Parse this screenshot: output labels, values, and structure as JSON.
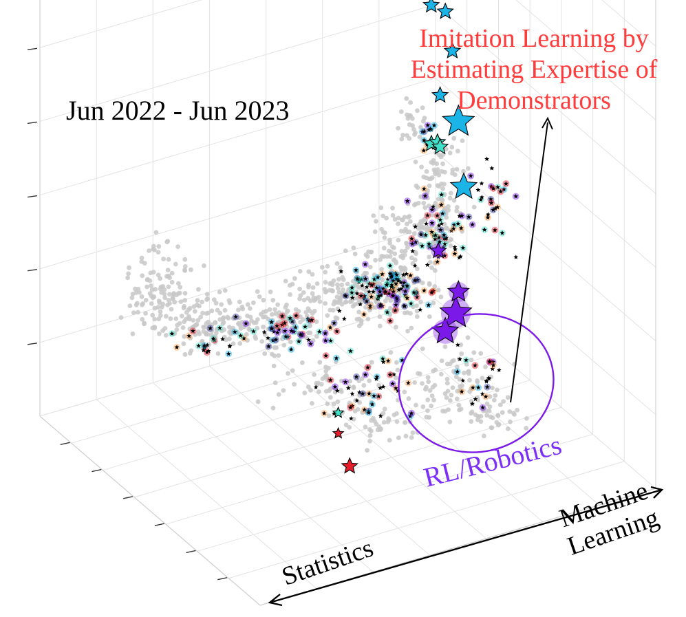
{
  "chart_data": {
    "type": "scatter",
    "title": "Jun 2022 - Jun 2023",
    "projection": "3d",
    "grid": true,
    "legend": "none",
    "axes": [
      {
        "name": "x",
        "label": "Statistics",
        "range": [
          0,
          1
        ]
      },
      {
        "name": "y",
        "label": "Machine Learning",
        "range": [
          0,
          1
        ]
      },
      {
        "name": "z",
        "label": "",
        "range": [
          0,
          1
        ]
      }
    ],
    "annotations": [
      {
        "text": "Imitation Learning by Estimating Expertise of Demonstrators",
        "color": "#ff3b3b",
        "points_to": [
          0.84,
          0.9,
          0.88
        ]
      },
      {
        "text": "RL/Robotics",
        "color": "#7b2ff7",
        "encloses": "purple cluster"
      }
    ],
    "colors": {
      "background_points": "#c8c8c8",
      "highlight_star": "#000000",
      "cyan": "#1ab4e6",
      "turquoise": "#40e0c8",
      "purple": "#7b19e8",
      "red": "#e61c2a",
      "orange": "#ffa552",
      "navy": "#3a3fa0",
      "annotation_red": "#ff3b3b"
    },
    "series": [
      {
        "name": "",
        "marker": "star",
        "color": "#1ab4e6",
        "points": [
          [
            0.64,
            0.8,
            0.82,
            5
          ],
          [
            0.7,
            0.86,
            0.8,
            5
          ],
          [
            0.66,
            0.8,
            0.74,
            2
          ],
          [
            0.74,
            0.88,
            0.68,
            2
          ],
          [
            0.78,
            0.92,
            0.58,
            2
          ],
          [
            0.86,
            0.98,
            0.4,
            5
          ],
          [
            0.8,
            0.96,
            0.3,
            4
          ],
          [
            0.62,
            0.8,
            0.58,
            2
          ]
        ]
      },
      {
        "name": "",
        "marker": "star",
        "color": "#40e0c8",
        "points": [
          [
            0.48,
            0.7,
            0.56,
            2
          ],
          [
            0.56,
            0.76,
            0.52,
            2
          ],
          [
            0.62,
            0.8,
            0.48,
            2
          ],
          [
            0.22,
            0.32,
            0.22,
            1
          ]
        ]
      },
      {
        "name": "",
        "marker": "star",
        "color": "#7b19e8",
        "points": [
          [
            0.8,
            0.94,
            0.06,
            5
          ],
          [
            0.74,
            0.88,
            0.06,
            4
          ],
          [
            0.86,
            0.98,
            0.07,
            3
          ],
          [
            0.7,
            0.84,
            0.24,
            2
          ]
        ]
      },
      {
        "name": "",
        "marker": "star",
        "color": "#e61c2a",
        "points": [
          [
            0.24,
            0.36,
            0.1,
            2
          ],
          [
            0.22,
            0.32,
            0.18,
            1
          ]
        ]
      }
    ]
  }
}
